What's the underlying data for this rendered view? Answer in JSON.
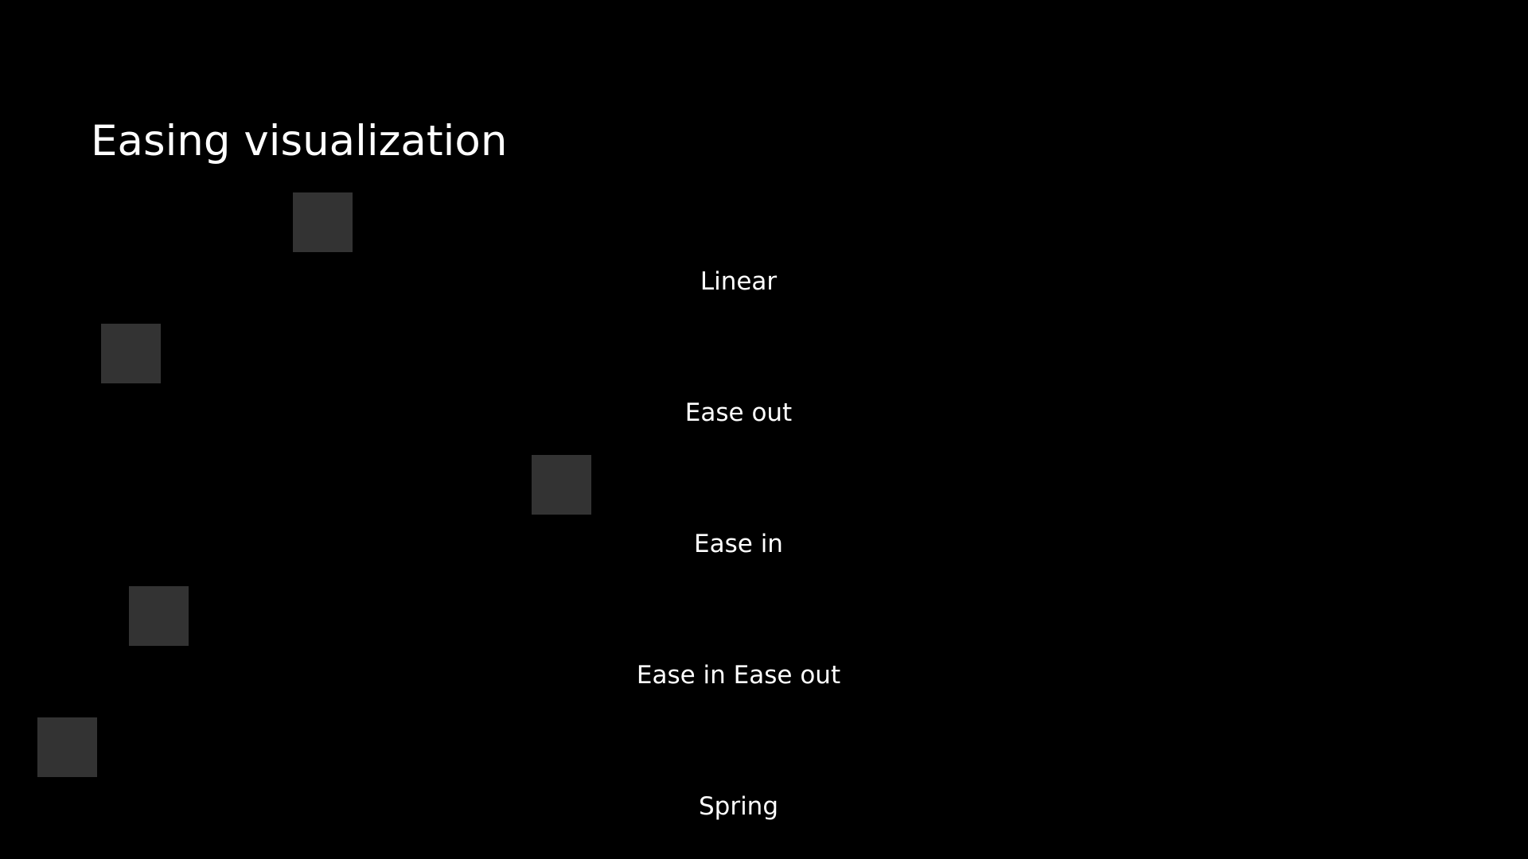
{
  "page": {
    "title": "Easing visualization",
    "background_color": "#000000",
    "box_color": "#333333",
    "text_color": "#ffffff"
  },
  "demos": [
    {
      "label": "Linear"
    },
    {
      "label": "Ease out"
    },
    {
      "label": "Ease in"
    },
    {
      "label": "Ease in Ease out"
    },
    {
      "label": "Spring"
    }
  ]
}
